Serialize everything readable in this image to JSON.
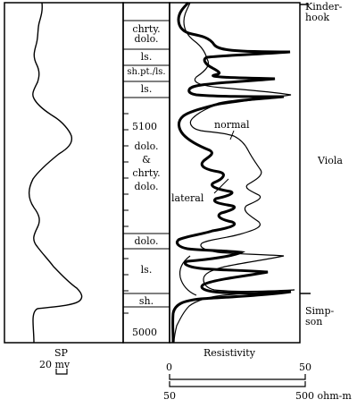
{
  "formations": {
    "kinderhook": "Kinder-\nhook",
    "viola": "Viola",
    "simpson": "Simp-\nson"
  },
  "lithology": [
    "chrty.\ndolo.",
    "ls.",
    "sh.pt./ls.",
    "ls.",
    "dolo.\n&\nchrty.\ndolo.",
    "dolo.",
    "ls.",
    "sh."
  ],
  "depths": [
    "5100",
    "5000"
  ],
  "curves": {
    "normal": "normal",
    "lateral": "lateral"
  },
  "sp": {
    "title": "SP",
    "scale": "20 mv"
  },
  "resistivity": {
    "title": "Resistivity",
    "scale1_min": "0",
    "scale1_max": "50",
    "scale2_min": "50",
    "scale2_max": "500 ohm-m"
  }
}
